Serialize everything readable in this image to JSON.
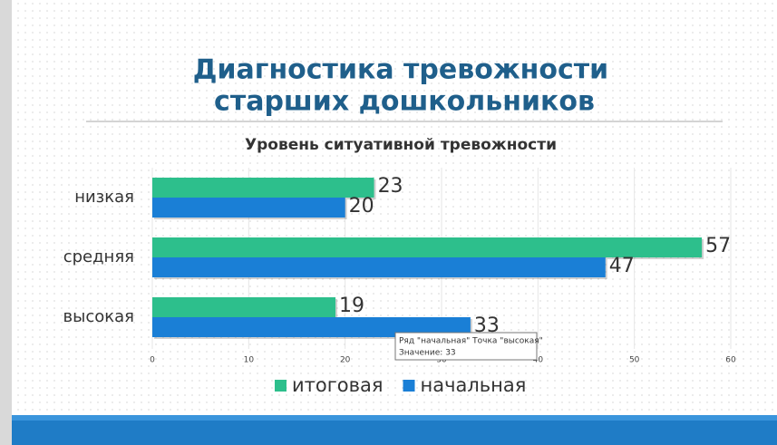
{
  "chart_data": {
    "type": "bar",
    "orientation": "horizontal",
    "title": [
      "Диагностика тревожности",
      "старших дошкольников"
    ],
    "subtitle": "Уровень ситуативной тревожности",
    "categories": [
      "низкая",
      "средняя",
      "высокая"
    ],
    "series": [
      {
        "name": "итоговая",
        "color": "#2dbf8c",
        "values": [
          23,
          57,
          19
        ]
      },
      {
        "name": "начальная",
        "color": "#1a7fd6",
        "values": [
          20,
          47,
          33
        ]
      }
    ],
    "xlim": [
      0,
      60
    ],
    "xticks": [
      0,
      10,
      20,
      30,
      40,
      50,
      60
    ],
    "grid": true,
    "legend": "bottom",
    "tooltip": {
      "line1": "Ряд \"начальная\" Точка \"высокая\"",
      "line2": "Значение: 33"
    }
  }
}
